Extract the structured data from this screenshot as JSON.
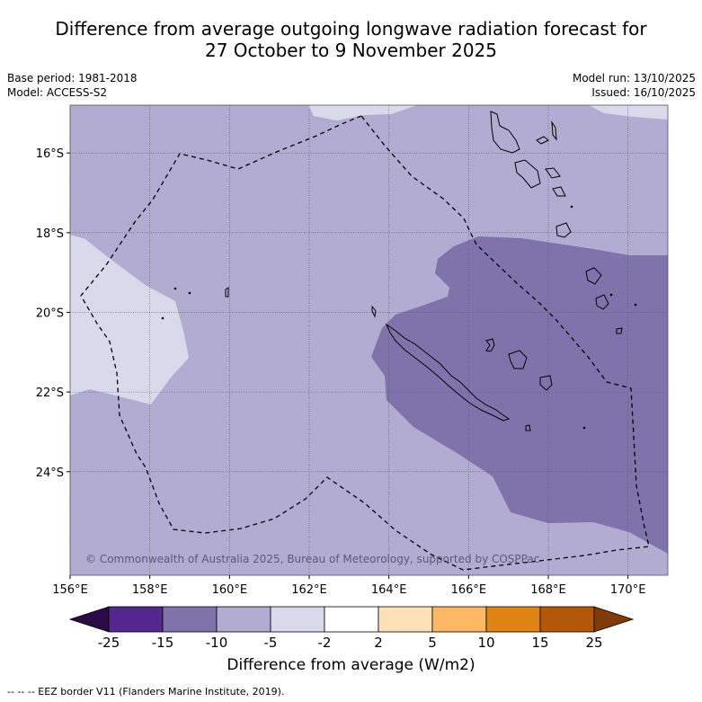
{
  "title_line1": "Difference from average outgoing longwave radiation forecast for",
  "title_line2": "27 October to 9 November 2025",
  "info": {
    "base_period": "Base period: 1981-2018",
    "model": "Model: ACCESS-S2",
    "model_run": "Model run: 13/10/2025",
    "issued": "Issued: 16/10/2025"
  },
  "map": {
    "lon_range": [
      156,
      171
    ],
    "lat_range": [
      -26.6,
      -14.8
    ],
    "lat_ticks": [
      "16°S",
      "18°S",
      "20°S",
      "22°S",
      "24°S"
    ],
    "lon_ticks": [
      "156°E",
      "158°E",
      "160°E",
      "162°E",
      "164°E",
      "166°E",
      "168°E",
      "170°E"
    ],
    "copyright": "© Commonwealth of Australia 2025, Bureau of Meteorology, supported by COSPPac"
  },
  "colorbar": {
    "label": "Difference from average (W/m2)",
    "ticks": [
      "-25",
      "-15",
      "-10",
      "-5",
      "-2",
      "2",
      "5",
      "10",
      "15",
      "25"
    ],
    "colors": [
      "#2a0b47",
      "#54278f",
      "#8073ac",
      "#b2abd2",
      "#d8daeb",
      "#ffffff",
      "#fee0b6",
      "#fdb863",
      "#e08214",
      "#b35806",
      "#7f3b08"
    ]
  },
  "footnote": "-- -- -- EEZ border V11 (Flanders Marine Institute, 2019)."
}
